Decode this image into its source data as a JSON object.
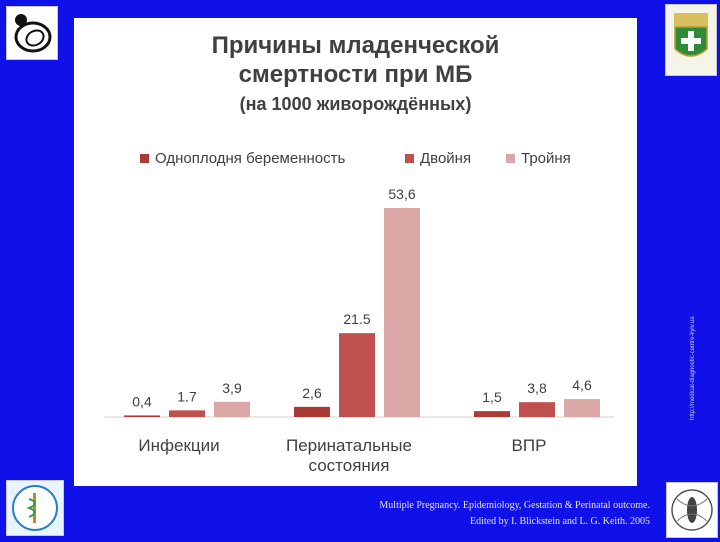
{
  "slide": {
    "title_line1": "Причины младенческой",
    "title_line2": "смертности при МБ",
    "title_line3": "(на 1000 живорождённых)",
    "footer_line1": "Multiple Pregnancy. Epidemiology, Gestation & Perinatal outcome.",
    "footer_line2": "Edited by I. Blickstein  and L. G. Keith. 2005",
    "side_text": "http://medical-diagnostic-centre-kyiv.ua"
  },
  "chart_data": {
    "type": "bar",
    "title": "",
    "xlabel": "",
    "ylabel": "",
    "grid": false,
    "legend_position": "top",
    "categories": [
      "Инфекции",
      "Перинатальные состояния",
      "ВПР"
    ],
    "category_label_lines": [
      [
        "Инфекции"
      ],
      [
        "Перинатальные",
        "состояния"
      ],
      [
        "ВПР"
      ]
    ],
    "series": [
      {
        "name": "Одноплодня беременность",
        "color": "#a93a34",
        "values": [
          0.4,
          2.6,
          1.5
        ],
        "labels": [
          "0,4",
          "2,6",
          "1,5"
        ]
      },
      {
        "name": "Двойня",
        "color": "#c0504d",
        "values": [
          1.7,
          21.5,
          3.8
        ],
        "labels": [
          "1.7",
          "21.5",
          "3,8"
        ]
      },
      {
        "name": "Тройня",
        "color": "#dba8a7",
        "values": [
          3.9,
          53.6,
          4.6
        ],
        "labels": [
          "3,9",
          "53,6",
          "4,6"
        ]
      }
    ],
    "ylim": [
      0,
      60
    ]
  }
}
